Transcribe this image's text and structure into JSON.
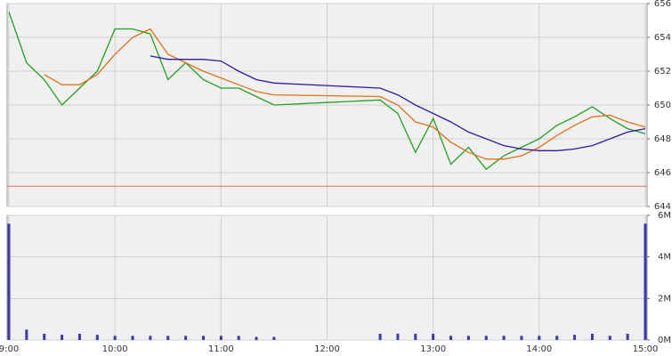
{
  "chart_data": [
    {
      "type": "line",
      "x": [
        540,
        550,
        560,
        570,
        580,
        590,
        600,
        610,
        620,
        630,
        640,
        650,
        660,
        670,
        680,
        690,
        750,
        760,
        770,
        780,
        790,
        800,
        810,
        820,
        830,
        840,
        850,
        860,
        870,
        880,
        890,
        900
      ],
      "series": [
        {
          "color": "#22a022",
          "values": [
            655.5,
            652.5,
            651.5,
            650,
            651,
            652,
            654.5,
            654.5,
            654.2,
            651.5,
            652.5,
            651.5,
            651,
            651,
            650.5,
            650,
            650.3,
            649.5,
            647.2,
            649.2,
            646.5,
            647.5,
            646.2,
            647,
            647.5,
            648,
            648.8,
            649.3,
            649.9,
            649.2,
            648.6,
            648.3
          ]
        },
        {
          "color": "#e0701a",
          "values": [
            null,
            null,
            651.8,
            651.2,
            651.2,
            651.8,
            653,
            654,
            654.5,
            653,
            652.5,
            652,
            651.6,
            651.2,
            650.8,
            650.6,
            650.5,
            650,
            649,
            648.7,
            647.8,
            647.2,
            646.8,
            646.8,
            647,
            647.5,
            648.2,
            648.8,
            649.3,
            649.4,
            649,
            648.7
          ]
        },
        {
          "color": "#2a1fa0",
          "values": [
            null,
            null,
            null,
            null,
            null,
            null,
            null,
            null,
            652.9,
            652.7,
            652.7,
            652.7,
            652.6,
            652,
            651.5,
            651.3,
            651,
            650.6,
            650,
            649.5,
            649,
            648.4,
            648,
            647.6,
            647.4,
            647.3,
            647.3,
            647.4,
            647.6,
            648,
            648.4,
            648.6
          ]
        }
      ],
      "reference_line": 645.2,
      "reference_color": "#e07070",
      "xlim": [
        540,
        902
      ],
      "ylim": [
        644,
        656
      ],
      "yticks": [
        644,
        646,
        648,
        650,
        652,
        654,
        656
      ],
      "grid": true
    },
    {
      "type": "bar",
      "x": [
        540,
        550,
        560,
        570,
        580,
        590,
        600,
        610,
        620,
        630,
        640,
        650,
        660,
        670,
        680,
        690,
        750,
        760,
        770,
        780,
        790,
        800,
        810,
        820,
        830,
        840,
        850,
        860,
        870,
        880,
        890,
        900
      ],
      "values": [
        5600000,
        500000,
        300000,
        250000,
        300000,
        250000,
        200000,
        200000,
        200000,
        200000,
        200000,
        200000,
        200000,
        200000,
        150000,
        150000,
        300000,
        300000,
        300000,
        300000,
        200000,
        200000,
        200000,
        200000,
        200000,
        200000,
        200000,
        250000,
        300000,
        200000,
        300000,
        5600000
      ],
      "color": "#3a3aa8",
      "xlim": [
        540,
        902
      ],
      "ylim": [
        0,
        6000000
      ],
      "yticks": [
        {
          "value": 0,
          "label": "0M"
        },
        {
          "value": 2000000,
          "label": "2M"
        },
        {
          "value": 4000000,
          "label": "4M"
        },
        {
          "value": 6000000,
          "label": "6M"
        }
      ],
      "xticks": [
        {
          "value": 540,
          "label": "9:00"
        },
        {
          "value": 600,
          "label": "10:00"
        },
        {
          "value": 660,
          "label": "11:00"
        },
        {
          "value": 720,
          "label": "12:00"
        },
        {
          "value": 780,
          "label": "13:00"
        },
        {
          "value": 840,
          "label": "14:00"
        },
        {
          "value": 900,
          "label": "15:00"
        }
      ],
      "grid": true
    }
  ]
}
